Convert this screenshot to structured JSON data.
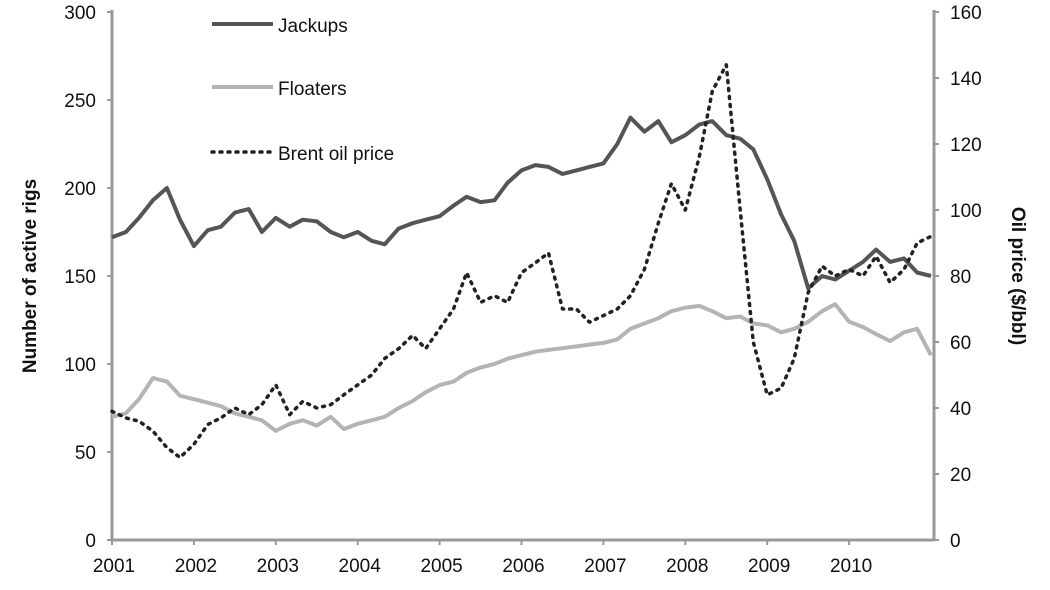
{
  "chart_data": {
    "type": "line",
    "title": "",
    "xlabel": "",
    "ylabel": "Number of active rigs",
    "y2label": "Oil price ($/bbl)",
    "ylim": [
      0,
      300
    ],
    "y2lim": [
      0,
      160
    ],
    "yticks": [
      "0",
      "50",
      "100",
      "150",
      "200",
      "250",
      "300"
    ],
    "y2ticks": [
      "0",
      "20",
      "40",
      "60",
      "80",
      "100",
      "120",
      "140",
      "160"
    ],
    "xticks": [
      "2001",
      "2002",
      "2003",
      "2004",
      "2005",
      "2006",
      "2007",
      "2008",
      "2009",
      "2010"
    ],
    "grid": false,
    "legend_position": "upper-left-inside",
    "x": [
      2001.0,
      2001.17,
      2001.33,
      2001.5,
      2001.67,
      2001.83,
      2002.0,
      2002.17,
      2002.33,
      2002.5,
      2002.67,
      2002.83,
      2003.0,
      2003.17,
      2003.33,
      2003.5,
      2003.67,
      2003.83,
      2004.0,
      2004.17,
      2004.33,
      2004.5,
      2004.67,
      2004.83,
      2005.0,
      2005.17,
      2005.33,
      2005.5,
      2005.67,
      2005.83,
      2006.0,
      2006.17,
      2006.33,
      2006.5,
      2006.67,
      2006.83,
      2007.0,
      2007.17,
      2007.33,
      2007.5,
      2007.67,
      2007.83,
      2008.0,
      2008.17,
      2008.33,
      2008.5,
      2008.67,
      2008.83,
      2009.0,
      2009.17,
      2009.33,
      2009.5,
      2009.67,
      2009.83,
      2010.0,
      2010.17,
      2010.33,
      2010.5,
      2010.67,
      2010.83,
      2011.0
    ],
    "series": [
      {
        "name": "Jackups",
        "axis": "left",
        "color": "#555555",
        "style": "solid",
        "values": [
          172,
          175,
          183,
          193,
          200,
          182,
          167,
          176,
          178,
          186,
          188,
          175,
          183,
          178,
          182,
          181,
          175,
          172,
          175,
          170,
          168,
          177,
          180,
          182,
          184,
          190,
          195,
          192,
          193,
          203,
          210,
          213,
          212,
          208,
          210,
          212,
          214,
          225,
          240,
          232,
          238,
          226,
          230,
          236,
          238,
          230,
          228,
          222,
          205,
          185,
          170,
          143,
          150,
          148,
          153,
          158,
          165,
          158,
          160,
          152,
          150
        ],
        "stroke_width": 4
      },
      {
        "name": "Floaters",
        "axis": "left",
        "color": "#b4b4b4",
        "style": "solid",
        "values": [
          70,
          72,
          80,
          92,
          90,
          82,
          80,
          78,
          76,
          72,
          70,
          68,
          62,
          66,
          68,
          65,
          70,
          63,
          66,
          68,
          70,
          75,
          79,
          84,
          88,
          90,
          95,
          98,
          100,
          103,
          105,
          107,
          108,
          109,
          110,
          111,
          112,
          114,
          120,
          123,
          126,
          130,
          132,
          133,
          130,
          126,
          127,
          123,
          122,
          118,
          120,
          124,
          130,
          134,
          124,
          121,
          117,
          113,
          118,
          120,
          105
        ],
        "stroke_width": 4
      },
      {
        "name": "Brent oil price",
        "axis": "right",
        "color": "#222222",
        "style": "dotted",
        "values": [
          39,
          37,
          36,
          33,
          28,
          25,
          29,
          35,
          37,
          40,
          38,
          41,
          47,
          38,
          42,
          40,
          41,
          44,
          47,
          50,
          55,
          58,
          62,
          58,
          64,
          70,
          81,
          72,
          74,
          72,
          81,
          84,
          87,
          70,
          70,
          66,
          68,
          70,
          74,
          82,
          96,
          108,
          100,
          116,
          136,
          144,
          100,
          60,
          44,
          46,
          55,
          75,
          83,
          80,
          82,
          80,
          86,
          78,
          82,
          90,
          92
        ],
        "stroke_width": 3.5
      }
    ]
  },
  "legend": {
    "items": [
      {
        "label": "Jackups"
      },
      {
        "label": "Floaters"
      },
      {
        "label": "Brent oil price"
      }
    ]
  },
  "axes": {
    "left_title": "Number of active rigs",
    "right_title": "Oil price ($/bbl)"
  }
}
